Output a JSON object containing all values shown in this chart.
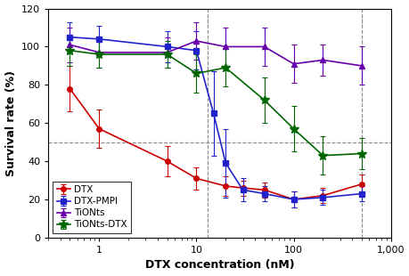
{
  "title": "",
  "xlabel": "DTX concentration (nM)",
  "ylabel": "Survival rate (%)",
  "xlim": [
    0.3,
    1000
  ],
  "ylim": [
    0,
    120
  ],
  "yticks": [
    0,
    20,
    40,
    60,
    80,
    100,
    120
  ],
  "hline_y": 50,
  "vline_x1": 13,
  "vline_x2": 500,
  "series": [
    {
      "label": "DTX",
      "color": "#cc0000",
      "marker": "o",
      "markersize": 4,
      "x": [
        0.5,
        1.0,
        5.0,
        10.0,
        20.0,
        30.0,
        50.0,
        100.0,
        200.0,
        500.0
      ],
      "y": [
        78,
        57,
        40,
        31,
        27,
        26,
        25,
        20,
        22,
        28
      ],
      "yerr": [
        12,
        10,
        8,
        6,
        5,
        4,
        4,
        4,
        4,
        5
      ]
    },
    {
      "label": "DTX-PMPI",
      "color": "#2222cc",
      "marker": "s",
      "markersize": 4,
      "x": [
        0.5,
        1.0,
        5.0,
        10.0,
        15.0,
        20.0,
        30.0,
        50.0,
        100.0,
        200.0,
        500.0
      ],
      "y": [
        105,
        104,
        100,
        98,
        65,
        39,
        25,
        23,
        20,
        21,
        23
      ],
      "yerr": [
        8,
        7,
        8,
        10,
        22,
        18,
        6,
        4,
        4,
        4,
        4
      ]
    },
    {
      "label": "TiONts",
      "color": "#6600aa",
      "marker": "^",
      "markersize": 5,
      "x": [
        0.5,
        1.0,
        5.0,
        10.0,
        20.0,
        50.0,
        100.0,
        200.0,
        500.0
      ],
      "y": [
        101,
        97,
        97,
        103,
        100,
        100,
        91,
        93,
        90
      ],
      "yerr": [
        9,
        8,
        8,
        10,
        10,
        10,
        10,
        8,
        10
      ]
    },
    {
      "label": "TiONts-DTX",
      "color": "#006600",
      "marker": "*",
      "markersize": 7,
      "x": [
        0.5,
        1.0,
        5.0,
        10.0,
        20.0,
        50.0,
        100.0,
        200.0,
        500.0
      ],
      "y": [
        98,
        96,
        96,
        86,
        89,
        72,
        57,
        43,
        44
      ],
      "yerr": [
        8,
        7,
        7,
        10,
        10,
        12,
        12,
        10,
        8
      ]
    }
  ],
  "legend_loc": "lower left",
  "background_color": "#ffffff",
  "figwidth": 4.6,
  "figheight": 3.1,
  "dpi": 100
}
